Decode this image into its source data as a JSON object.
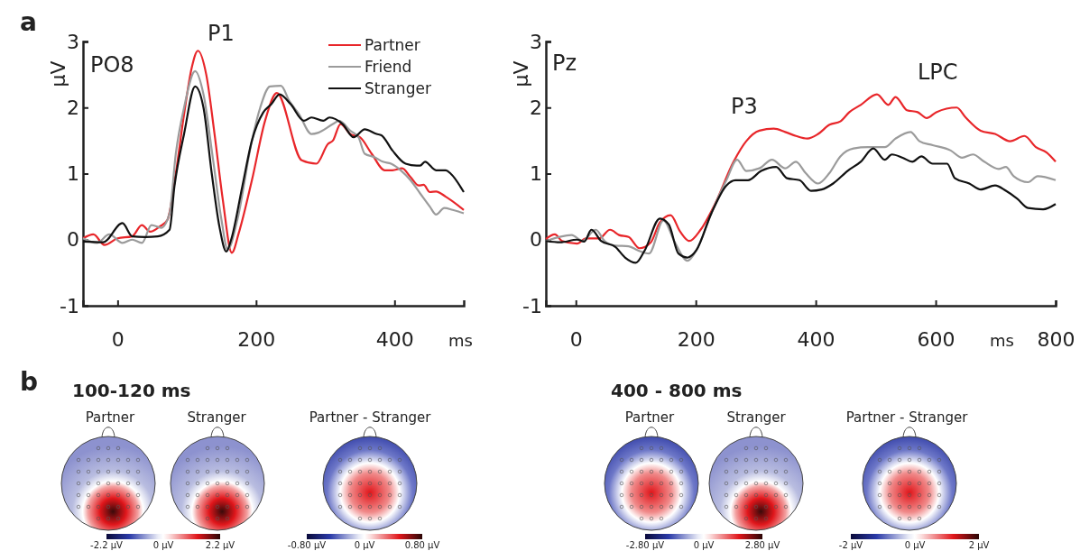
{
  "chart_data": [
    {
      "type": "line",
      "xlabel": "ms",
      "ylabel": "μV",
      "xlim": [
        -50,
        500
      ],
      "ylim": [
        -1,
        3
      ],
      "xticks": [
        0,
        200,
        400
      ],
      "yticks": [
        -1,
        0,
        1,
        2,
        3
      ],
      "legend": "top right",
      "annotations": [
        "a",
        "PO8",
        "P1"
      ],
      "series": [
        {
          "name": "Partner",
          "color": "#e8262a",
          "x": [
            -50,
            -35,
            -19,
            0,
            21,
            35,
            47,
            61,
            72,
            84,
            96,
            107,
            116,
            128,
            140,
            152,
            165,
            175,
            194,
            213,
            230,
            266,
            287,
            304,
            311,
            322,
            336,
            350,
            367,
            386,
            397,
            411,
            423,
            435,
            442,
            451,
            460,
            474,
            500
          ],
          "values": [
            0.02,
            0.08,
            -0.08,
            0.02,
            0.05,
            0.22,
            0.12,
            0.2,
            0.3,
            1.0,
            1.9,
            2.6,
            2.86,
            2.5,
            1.6,
            0.6,
            -0.2,
            0.1,
            0.9,
            1.8,
            2.22,
            1.2,
            1.15,
            1.45,
            1.5,
            1.75,
            1.6,
            1.55,
            1.3,
            1.05,
            1.05,
            1.08,
            0.95,
            0.82,
            0.83,
            0.72,
            0.73,
            0.65,
            0.45
          ]
        },
        {
          "name": "Friend",
          "color": "#9b9b9b",
          "x": [
            -50,
            -30,
            -12,
            7,
            21,
            35,
            49,
            63,
            75,
            84,
            96,
            112,
            124,
            138,
            150,
            159,
            173,
            194,
            206,
            220,
            236,
            248,
            262,
            280,
            290,
            311,
            320,
            336,
            348,
            357,
            371,
            383,
            395,
            409,
            423,
            437,
            451,
            460,
            472,
            484,
            500
          ],
          "values": [
            0.02,
            -0.05,
            0.08,
            -0.05,
            0.0,
            -0.05,
            0.22,
            0.18,
            0.4,
            1.3,
            2.0,
            2.55,
            2.2,
            1.2,
            0.3,
            -0.15,
            0.3,
            1.5,
            2.0,
            2.32,
            2.33,
            2.1,
            1.9,
            1.6,
            1.62,
            1.75,
            1.8,
            1.65,
            1.55,
            1.3,
            1.25,
            1.18,
            1.15,
            1.05,
            0.9,
            0.7,
            0.5,
            0.38,
            0.48,
            0.45,
            0.4
          ]
        },
        {
          "name": "Stranger",
          "color": "#111111",
          "x": [
            -50,
            -21,
            7,
            21,
            40,
            58,
            75,
            82,
            96,
            112,
            124,
            136,
            147,
            157,
            164,
            180,
            194,
            210,
            222,
            234,
            250,
            269,
            280,
            297,
            306,
            325,
            341,
            357,
            374,
            381,
            397,
            416,
            432,
            437,
            444,
            460,
            474,
            481,
            500
          ],
          "values": [
            -0.03,
            -0.04,
            0.25,
            0.05,
            0.04,
            0.05,
            0.15,
            0.8,
            1.6,
            2.32,
            2.0,
            1.0,
            0.2,
            -0.18,
            0.0,
            0.8,
            1.5,
            1.92,
            2.05,
            2.2,
            2.05,
            1.8,
            1.85,
            1.8,
            1.85,
            1.75,
            1.55,
            1.67,
            1.6,
            1.58,
            1.35,
            1.15,
            1.12,
            1.12,
            1.18,
            1.05,
            1.05,
            1.0,
            0.72
          ]
        }
      ]
    },
    {
      "type": "line",
      "xlabel": "ms",
      "ylabel": "μV",
      "xlim": [
        -50,
        800
      ],
      "ylim": [
        -1,
        3
      ],
      "xticks": [
        0,
        200,
        400,
        600,
        800
      ],
      "yticks": [
        -1,
        0,
        1,
        2,
        3
      ],
      "annotations": [
        "Pz",
        "P3",
        "LPC"
      ],
      "series": [
        {
          "color": "#e8262a",
          "x": [
            -50,
            -35,
            -23,
            2,
            17,
            39,
            57,
            72,
            88,
            106,
            125,
            140,
            158,
            174,
            189,
            208,
            232,
            263,
            284,
            306,
            330,
            349,
            367,
            386,
            404,
            423,
            441,
            456,
            475,
            502,
            521,
            533,
            552,
            570,
            585,
            601,
            635,
            650,
            675,
            699,
            724,
            748,
            767,
            785,
            800
          ],
          "values": [
            0.01,
            0.08,
            -0.02,
            -0.06,
            0.02,
            0.02,
            0.15,
            0.07,
            0.04,
            -0.13,
            -0.04,
            0.26,
            0.37,
            0.12,
            -0.02,
            0.15,
            0.54,
            1.18,
            1.49,
            1.65,
            1.68,
            1.63,
            1.57,
            1.53,
            1.6,
            1.74,
            1.79,
            1.93,
            2.04,
            2.2,
            2.04,
            2.16,
            1.96,
            1.93,
            1.84,
            1.93,
            2.0,
            1.85,
            1.65,
            1.6,
            1.49,
            1.57,
            1.4,
            1.32,
            1.18
          ]
        },
        {
          "color": "#9b9b9b",
          "x": [
            -50,
            -7,
            11,
            33,
            48,
            66,
            88,
            103,
            122,
            146,
            165,
            186,
            201,
            226,
            251,
            269,
            284,
            306,
            327,
            349,
            367,
            383,
            404,
            423,
            441,
            463,
            487,
            515,
            533,
            558,
            573,
            595,
            625,
            644,
            662,
            681,
            705,
            717,
            730,
            754,
            770,
            800
          ],
          "values": [
            -0.02,
            0.07,
            -0.02,
            0.15,
            -0.02,
            -0.09,
            -0.1,
            -0.16,
            -0.21,
            0.29,
            -0.04,
            -0.32,
            -0.16,
            0.4,
            0.9,
            1.21,
            1.04,
            1.08,
            1.21,
            1.08,
            1.18,
            1.01,
            0.85,
            1.01,
            1.26,
            1.38,
            1.4,
            1.4,
            1.53,
            1.63,
            1.49,
            1.43,
            1.35,
            1.24,
            1.29,
            1.18,
            1.07,
            1.1,
            0.96,
            0.87,
            0.96,
            0.9
          ]
        },
        {
          "color": "#111111",
          "x": [
            -50,
            -26,
            2,
            14,
            26,
            42,
            66,
            82,
            100,
            115,
            140,
            155,
            171,
            186,
            201,
            226,
            251,
            266,
            287,
            309,
            334,
            352,
            373,
            392,
            410,
            429,
            453,
            475,
            496,
            515,
            527,
            545,
            561,
            576,
            595,
            619,
            632,
            656,
            675,
            699,
            717,
            736,
            754,
            779,
            800
          ],
          "values": [
            -0.02,
            -0.04,
            0.0,
            -0.03,
            0.15,
            -0.02,
            -0.11,
            -0.27,
            -0.35,
            -0.16,
            0.32,
            0.23,
            -0.21,
            -0.27,
            -0.16,
            0.4,
            0.82,
            0.9,
            0.9,
            1.04,
            1.1,
            0.93,
            0.9,
            0.74,
            0.76,
            0.85,
            1.04,
            1.18,
            1.38,
            1.21,
            1.29,
            1.24,
            1.18,
            1.26,
            1.15,
            1.15,
            0.93,
            0.85,
            0.76,
            0.82,
            0.74,
            0.62,
            0.48,
            0.46,
            0.54
          ]
        }
      ]
    },
    {
      "type": "other",
      "annotations": [
        "b",
        "100-120 ms",
        "Partner",
        "Stranger",
        "Partner - Stranger",
        "-2.2 μV",
        "0 μV",
        "2.2 μV",
        "-0.80 μV",
        "0 μV",
        "0.80 μV",
        "400 - 800 ms",
        "Partner",
        "Stranger",
        "Partner - Stranger",
        "-2.80 μV",
        "0 μV",
        "2.80 μV",
        "-2 μV",
        "0 μV",
        "2 μV"
      ]
    }
  ]
}
